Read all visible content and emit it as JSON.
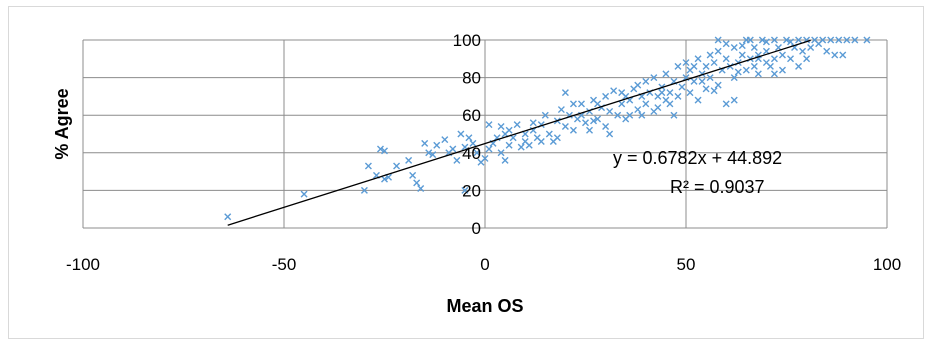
{
  "chart_data": {
    "type": "scatter",
    "xlabel": "Mean OS",
    "ylabel": "% Agree",
    "xlim": [
      -100,
      100
    ],
    "ylim": [
      0,
      100
    ],
    "x_ticks": [
      "-100",
      "-50",
      "0",
      "50",
      "100"
    ],
    "y_ticks": [
      "0",
      "20",
      "40",
      "60",
      "80",
      "100"
    ],
    "grid": true,
    "marker": "x",
    "point_color": "#5b9bd5",
    "trendline": {
      "slope": 0.6782,
      "intercept": 44.892,
      "x_range": [
        -64,
        81
      ],
      "equation": "y = 0.6782x + 44.892",
      "r_squared": "R² = 0.9037"
    },
    "points": [
      [
        -64,
        6
      ],
      [
        -45,
        18
      ],
      [
        -30,
        20
      ],
      [
        -29,
        33
      ],
      [
        -27,
        28
      ],
      [
        -26,
        42
      ],
      [
        -25,
        41
      ],
      [
        -25,
        26
      ],
      [
        -24,
        27
      ],
      [
        -22,
        33
      ],
      [
        -19,
        36
      ],
      [
        -18,
        28
      ],
      [
        -17,
        24
      ],
      [
        -16,
        21
      ],
      [
        -15,
        45
      ],
      [
        -14,
        40
      ],
      [
        -13,
        39
      ],
      [
        -12,
        44
      ],
      [
        -10,
        47
      ],
      [
        -9,
        40
      ],
      [
        -8,
        42
      ],
      [
        -7,
        36
      ],
      [
        -6,
        50
      ],
      [
        -5,
        20
      ],
      [
        -5,
        43
      ],
      [
        -4,
        48
      ],
      [
        -3,
        45
      ],
      [
        -2,
        40
      ],
      [
        -1,
        35
      ],
      [
        0,
        37
      ],
      [
        1,
        42
      ],
      [
        1,
        55
      ],
      [
        2,
        45
      ],
      [
        3,
        48
      ],
      [
        4,
        40
      ],
      [
        5,
        36
      ],
      [
        5,
        50
      ],
      [
        6,
        44
      ],
      [
        7,
        48
      ],
      [
        8,
        55
      ],
      [
        9,
        43
      ],
      [
        10,
        50
      ],
      [
        11,
        44
      ],
      [
        12,
        52
      ],
      [
        13,
        48
      ],
      [
        14,
        55
      ],
      [
        15,
        60
      ],
      [
        16,
        50
      ],
      [
        17,
        46
      ],
      [
        18,
        57
      ],
      [
        19,
        63
      ],
      [
        20,
        54
      ],
      [
        20,
        72
      ],
      [
        21,
        60
      ],
      [
        22,
        52
      ],
      [
        23,
        58
      ],
      [
        24,
        66
      ],
      [
        25,
        56
      ],
      [
        26,
        62
      ],
      [
        27,
        68
      ],
      [
        28,
        58
      ],
      [
        29,
        64
      ],
      [
        30,
        70
      ],
      [
        30,
        54
      ],
      [
        31,
        62
      ],
      [
        32,
        73
      ],
      [
        33,
        60
      ],
      [
        34,
        66
      ],
      [
        35,
        70
      ],
      [
        35,
        58
      ],
      [
        36,
        68
      ],
      [
        37,
        74
      ],
      [
        38,
        63
      ],
      [
        39,
        70
      ],
      [
        40,
        66
      ],
      [
        40,
        78
      ],
      [
        41,
        72
      ],
      [
        42,
        62
      ],
      [
        42,
        80
      ],
      [
        43,
        70
      ],
      [
        44,
        75
      ],
      [
        45,
        68
      ],
      [
        45,
        82
      ],
      [
        46,
        72
      ],
      [
        47,
        78
      ],
      [
        48,
        86
      ],
      [
        48,
        70
      ],
      [
        49,
        75
      ],
      [
        50,
        80
      ],
      [
        50,
        88
      ],
      [
        51,
        72
      ],
      [
        51,
        84
      ],
      [
        52,
        78
      ],
      [
        53,
        90
      ],
      [
        53,
        68
      ],
      [
        54,
        82
      ],
      [
        55,
        86
      ],
      [
        55,
        74
      ],
      [
        56,
        92
      ],
      [
        56,
        80
      ],
      [
        57,
        88
      ],
      [
        58,
        76
      ],
      [
        58,
        94
      ],
      [
        59,
        84
      ],
      [
        60,
        90
      ],
      [
        60,
        66
      ],
      [
        61,
        86
      ],
      [
        62,
        96
      ],
      [
        62,
        80
      ],
      [
        63,
        88
      ],
      [
        64,
        92
      ],
      [
        65,
        84
      ],
      [
        65,
        100
      ],
      [
        66,
        90
      ],
      [
        67,
        86
      ],
      [
        67,
        96
      ],
      [
        68,
        82
      ],
      [
        68,
        92
      ],
      [
        69,
        100
      ],
      [
        70,
        88
      ],
      [
        70,
        94
      ],
      [
        71,
        86
      ],
      [
        72,
        100
      ],
      [
        72,
        90
      ],
      [
        73,
        96
      ],
      [
        74,
        84
      ],
      [
        74,
        92
      ],
      [
        75,
        100
      ],
      [
        76,
        90
      ],
      [
        77,
        96
      ],
      [
        78,
        100
      ],
      [
        78,
        86
      ],
      [
        79,
        94
      ],
      [
        80,
        100
      ],
      [
        80,
        90
      ],
      [
        81,
        96
      ],
      [
        82,
        100
      ],
      [
        83,
        98
      ],
      [
        84,
        100
      ],
      [
        85,
        94
      ],
      [
        86,
        100
      ],
      [
        87,
        92
      ],
      [
        88,
        100
      ],
      [
        89,
        92
      ],
      [
        90,
        100
      ],
      [
        92,
        100
      ],
      [
        95,
        100
      ],
      [
        58,
        100
      ],
      [
        60,
        98
      ],
      [
        64,
        97
      ],
      [
        66,
        100
      ],
      [
        70,
        99
      ],
      [
        76,
        99
      ],
      [
        52,
        86
      ],
      [
        54,
        78
      ],
      [
        46,
        66
      ],
      [
        44,
        72
      ],
      [
        38,
        76
      ],
      [
        36,
        60
      ],
      [
        34,
        72
      ],
      [
        28,
        66
      ],
      [
        26,
        52
      ],
      [
        24,
        60
      ],
      [
        22,
        66
      ],
      [
        18,
        48
      ],
      [
        14,
        46
      ],
      [
        12,
        56
      ],
      [
        10,
        46
      ],
      [
        6,
        52
      ],
      [
        4,
        54
      ],
      [
        63,
        83
      ],
      [
        68,
        90
      ],
      [
        72,
        82
      ],
      [
        57,
        73
      ],
      [
        43,
        64
      ],
      [
        39,
        60
      ],
      [
        31,
        50
      ],
      [
        27,
        57
      ],
      [
        47,
        60
      ],
      [
        62,
        68
      ]
    ]
  }
}
